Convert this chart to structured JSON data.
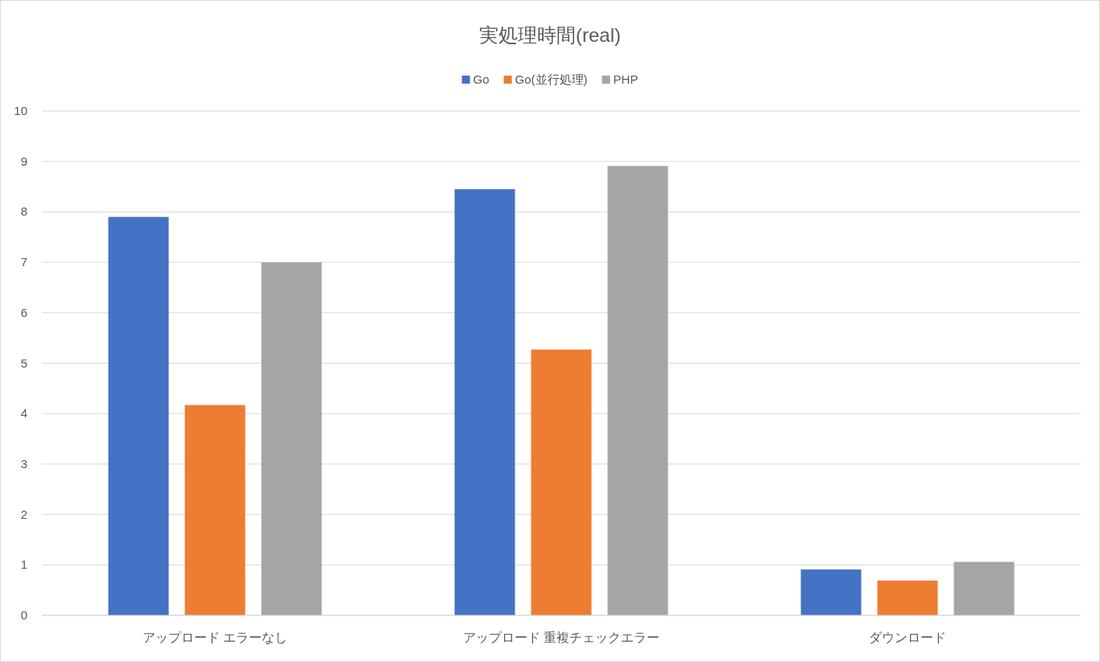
{
  "chart_data": {
    "type": "bar",
    "title": "実処理時間(real)",
    "categories": [
      "アップロード エラーなし",
      "アップロード 重複チェックエラー",
      "ダウンロード"
    ],
    "series": [
      {
        "name": "Go",
        "color": "#4472c4",
        "values": [
          7.9,
          8.45,
          0.91
        ]
      },
      {
        "name": "Go(並行処理)",
        "color": "#ed7d31",
        "values": [
          4.17,
          5.27,
          0.69
        ]
      },
      {
        "name": "PHP",
        "color": "#a5a5a5",
        "values": [
          7.0,
          8.91,
          1.06
        ]
      }
    ],
    "ylim": [
      0,
      10
    ],
    "yticks": [
      0,
      1,
      2,
      3,
      4,
      5,
      6,
      7,
      8,
      9,
      10
    ],
    "grid": "y",
    "legend": "top"
  }
}
